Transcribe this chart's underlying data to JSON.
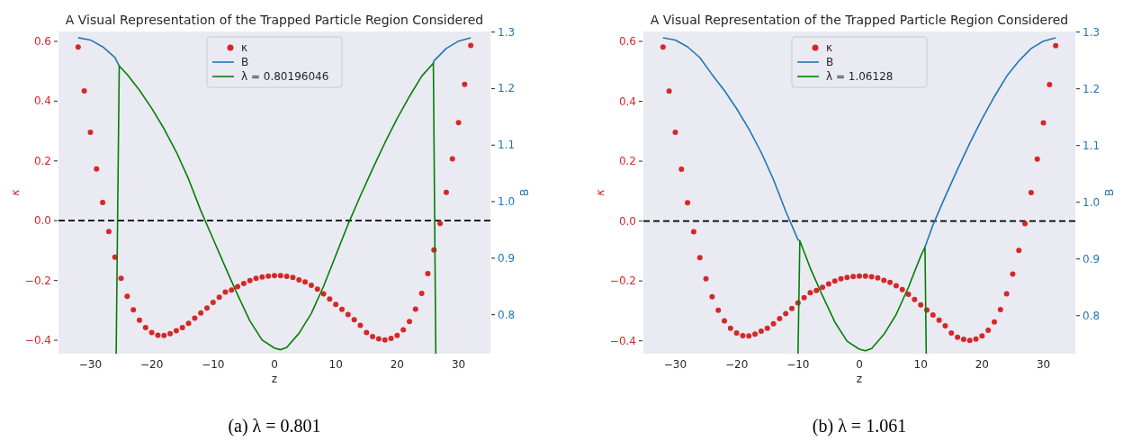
{
  "chart_data": [
    {
      "type": "scatter",
      "title": "A Visual Representation of the Trapped Particle Region Considered",
      "xlabel": "z",
      "ylabel": "κ",
      "y2label": "B",
      "annotations": [
        "(a) λ = 0.801"
      ],
      "x": [
        -32,
        -31,
        -30,
        -29,
        -28,
        -27,
        -26,
        -25,
        -24,
        -23,
        -22,
        -21,
        -20,
        -19,
        -18,
        -17,
        -16,
        -15,
        -14,
        -13,
        -12,
        -11,
        -10,
        -9,
        -8,
        -7,
        -6,
        -5,
        -4,
        -3,
        -2,
        -1,
        0,
        1,
        2,
        3,
        4,
        5,
        6,
        7,
        8,
        9,
        10,
        11,
        12,
        13,
        14,
        15,
        16,
        17,
        18,
        19,
        20,
        21,
        22,
        23,
        24,
        25,
        26,
        27,
        28,
        29,
        30,
        31,
        32
      ],
      "series": [
        {
          "name": "κ",
          "color": "#d62728",
          "marker": "circle",
          "values": [
            0.581,
            0.434,
            0.296,
            0.173,
            0.061,
            -0.036,
            -0.122,
            -0.193,
            -0.253,
            -0.298,
            -0.333,
            -0.358,
            -0.374,
            -0.383,
            -0.384,
            -0.378,
            -0.368,
            -0.358,
            -0.343,
            -0.326,
            -0.309,
            -0.292,
            -0.273,
            -0.256,
            -0.239,
            -0.232,
            -0.221,
            -0.21,
            -0.2,
            -0.193,
            -0.188,
            -0.185,
            -0.184,
            -0.184,
            -0.186,
            -0.19,
            -0.198,
            -0.205,
            -0.216,
            -0.229,
            -0.245,
            -0.262,
            -0.28,
            -0.297,
            -0.314,
            -0.331,
            -0.35,
            -0.374,
            -0.388,
            -0.395,
            -0.399,
            -0.394,
            -0.384,
            -0.365,
            -0.337,
            -0.296,
            -0.243,
            -0.177,
            -0.098,
            -0.009,
            0.095,
            0.207,
            0.328,
            0.456,
            0.586
          ]
        },
        {
          "name": "B",
          "type": "line",
          "axis": "y2",
          "color": "#1f77b4",
          "x": [
            -32,
            -30,
            -28,
            -26,
            -25.3,
            0,
            25.9,
            26,
            28,
            30,
            32
          ],
          "values": [
            1.29,
            1.286,
            1.274,
            1.255,
            1.24,
            null,
            1.245,
            1.249,
            1.271,
            1.284,
            1.29
          ]
        },
        {
          "name": "λ = 0.80196046",
          "type": "line",
          "axis": "y2",
          "color": "#008000",
          "x": [
            -25.8,
            -25.3,
            -24,
            -22,
            -20,
            -18,
            -16,
            -14,
            -12,
            -10,
            -8,
            -6,
            -4,
            -2,
            0,
            1,
            2,
            4,
            6,
            8,
            10,
            12,
            14,
            16,
            18,
            20,
            22,
            24,
            25.9,
            26.3
          ],
          "values": [
            0.731,
            1.24,
            1.225,
            1.197,
            1.165,
            1.129,
            1.088,
            1.04,
            0.984,
            0.934,
            0.884,
            0.835,
            0.789,
            0.755,
            0.741,
            0.738,
            0.742,
            0.767,
            0.802,
            0.85,
            0.905,
            0.96,
            1.01,
            1.058,
            1.104,
            1.147,
            1.186,
            1.222,
            1.245,
            0.731
          ]
        }
      ],
      "xlim": [
        -35.2,
        35.2
      ],
      "xticks": [
        {
          "value": -30,
          "label": "−30"
        },
        {
          "value": -20,
          "label": "−20"
        },
        {
          "value": -10,
          "label": "−10"
        },
        0,
        10,
        20,
        30
      ],
      "ylim": [
        -0.445,
        0.633
      ],
      "yticks": [
        {
          "value": -0.4,
          "label": "−0.4"
        },
        {
          "value": -0.2,
          "label": "−0.2"
        },
        {
          "value": 0,
          "label": "0.0"
        },
        0.2,
        0.4,
        0.6
      ],
      "y2lim": [
        0.731,
        1.301
      ],
      "y2ticks": [
        0.8,
        0.9,
        {
          "value": 1,
          "label": "1.0"
        },
        1.1,
        1.2,
        1.3
      ],
      "ref_lines": [
        {
          "axis": "y",
          "value": 0,
          "color": "#000000",
          "line_style": "dashed"
        }
      ],
      "grid": false,
      "legend": "top"
    },
    {
      "type": "scatter",
      "title": "A Visual Representation of the Trapped Particle Region Considered",
      "xlabel": "z",
      "ylabel": "κ",
      "y2label": "B",
      "annotations": [
        "(b) λ = 1.061"
      ],
      "x": [
        -32,
        -31,
        -30,
        -29,
        -28,
        -27,
        -26,
        -25,
        -24,
        -23,
        -22,
        -21,
        -20,
        -19,
        -18,
        -17,
        -16,
        -15,
        -14,
        -13,
        -12,
        -11,
        -10,
        -9,
        -8,
        -7,
        -6,
        -5,
        -4,
        -3,
        -2,
        -1,
        0,
        1,
        2,
        3,
        4,
        5,
        6,
        7,
        8,
        9,
        10,
        11,
        12,
        13,
        14,
        15,
        16,
        17,
        18,
        19,
        20,
        21,
        22,
        23,
        24,
        25,
        26,
        27,
        28,
        29,
        30,
        31,
        32
      ],
      "series": [
        {
          "name": "κ",
          "color": "#d62728",
          "marker": "circle",
          "values": [
            0.581,
            0.434,
            0.296,
            0.173,
            0.061,
            -0.036,
            -0.122,
            -0.193,
            -0.253,
            -0.298,
            -0.333,
            -0.358,
            -0.374,
            -0.383,
            -0.384,
            -0.378,
            -0.368,
            -0.358,
            -0.343,
            -0.326,
            -0.309,
            -0.292,
            -0.273,
            -0.256,
            -0.239,
            -0.232,
            -0.221,
            -0.21,
            -0.2,
            -0.193,
            -0.188,
            -0.185,
            -0.184,
            -0.184,
            -0.186,
            -0.19,
            -0.198,
            -0.205,
            -0.216,
            -0.229,
            -0.245,
            -0.262,
            -0.28,
            -0.297,
            -0.314,
            -0.331,
            -0.35,
            -0.374,
            -0.388,
            -0.395,
            -0.399,
            -0.394,
            -0.384,
            -0.365,
            -0.337,
            -0.296,
            -0.243,
            -0.177,
            -0.098,
            -0.009,
            0.095,
            0.207,
            0.328,
            0.456,
            0.586
          ]
        },
        {
          "name": "B",
          "type": "line",
          "axis": "y2",
          "color": "#1f77b4",
          "x": [
            -32,
            -30,
            -28,
            -26,
            -24,
            -22,
            -20,
            -18,
            -16,
            -14,
            -12,
            -10,
            -9.7,
            0,
            10.7,
            12,
            14,
            16,
            18,
            20,
            22,
            24,
            26,
            28,
            30,
            32
          ],
          "values": [
            1.29,
            1.286,
            1.274,
            1.255,
            1.225,
            1.197,
            1.165,
            1.129,
            1.088,
            1.04,
            0.984,
            0.934,
            0.932,
            null,
            0.921,
            0.96,
            1.01,
            1.058,
            1.104,
            1.147,
            1.186,
            1.222,
            1.249,
            1.271,
            1.284,
            1.29
          ]
        },
        {
          "name": "λ = 1.06128",
          "type": "line",
          "axis": "y2",
          "color": "#008000",
          "x": [
            -10,
            -9.7,
            -8,
            -6,
            -4,
            -2,
            0,
            1,
            2,
            4,
            6,
            8,
            10,
            10.7,
            10.9
          ],
          "values": [
            0.733,
            0.932,
            0.884,
            0.835,
            0.789,
            0.755,
            0.741,
            0.738,
            0.742,
            0.767,
            0.802,
            0.85,
            0.905,
            0.921,
            0.733
          ]
        }
      ],
      "xlim": [
        -35.2,
        35.2
      ],
      "xticks": [
        {
          "value": -30,
          "label": "−30"
        },
        {
          "value": -20,
          "label": "−20"
        },
        {
          "value": -10,
          "label": "−10"
        },
        0,
        10,
        20,
        30
      ],
      "ylim": [
        -0.443,
        0.633
      ],
      "yticks": [
        {
          "value": -0.4,
          "label": "−0.4"
        },
        {
          "value": -0.2,
          "label": "−0.2"
        },
        {
          "value": 0,
          "label": "0.0"
        },
        0.2,
        0.4,
        0.6
      ],
      "y2lim": [
        0.733,
        1.301
      ],
      "y2ticks": [
        0.8,
        0.9,
        {
          "value": 1,
          "label": "1.0"
        },
        1.1,
        1.2,
        1.3
      ],
      "ref_lines": [
        {
          "axis": "y",
          "value": 0,
          "color": "#000000",
          "line_style": "dashed"
        }
      ],
      "grid": false,
      "legend": "top"
    }
  ]
}
